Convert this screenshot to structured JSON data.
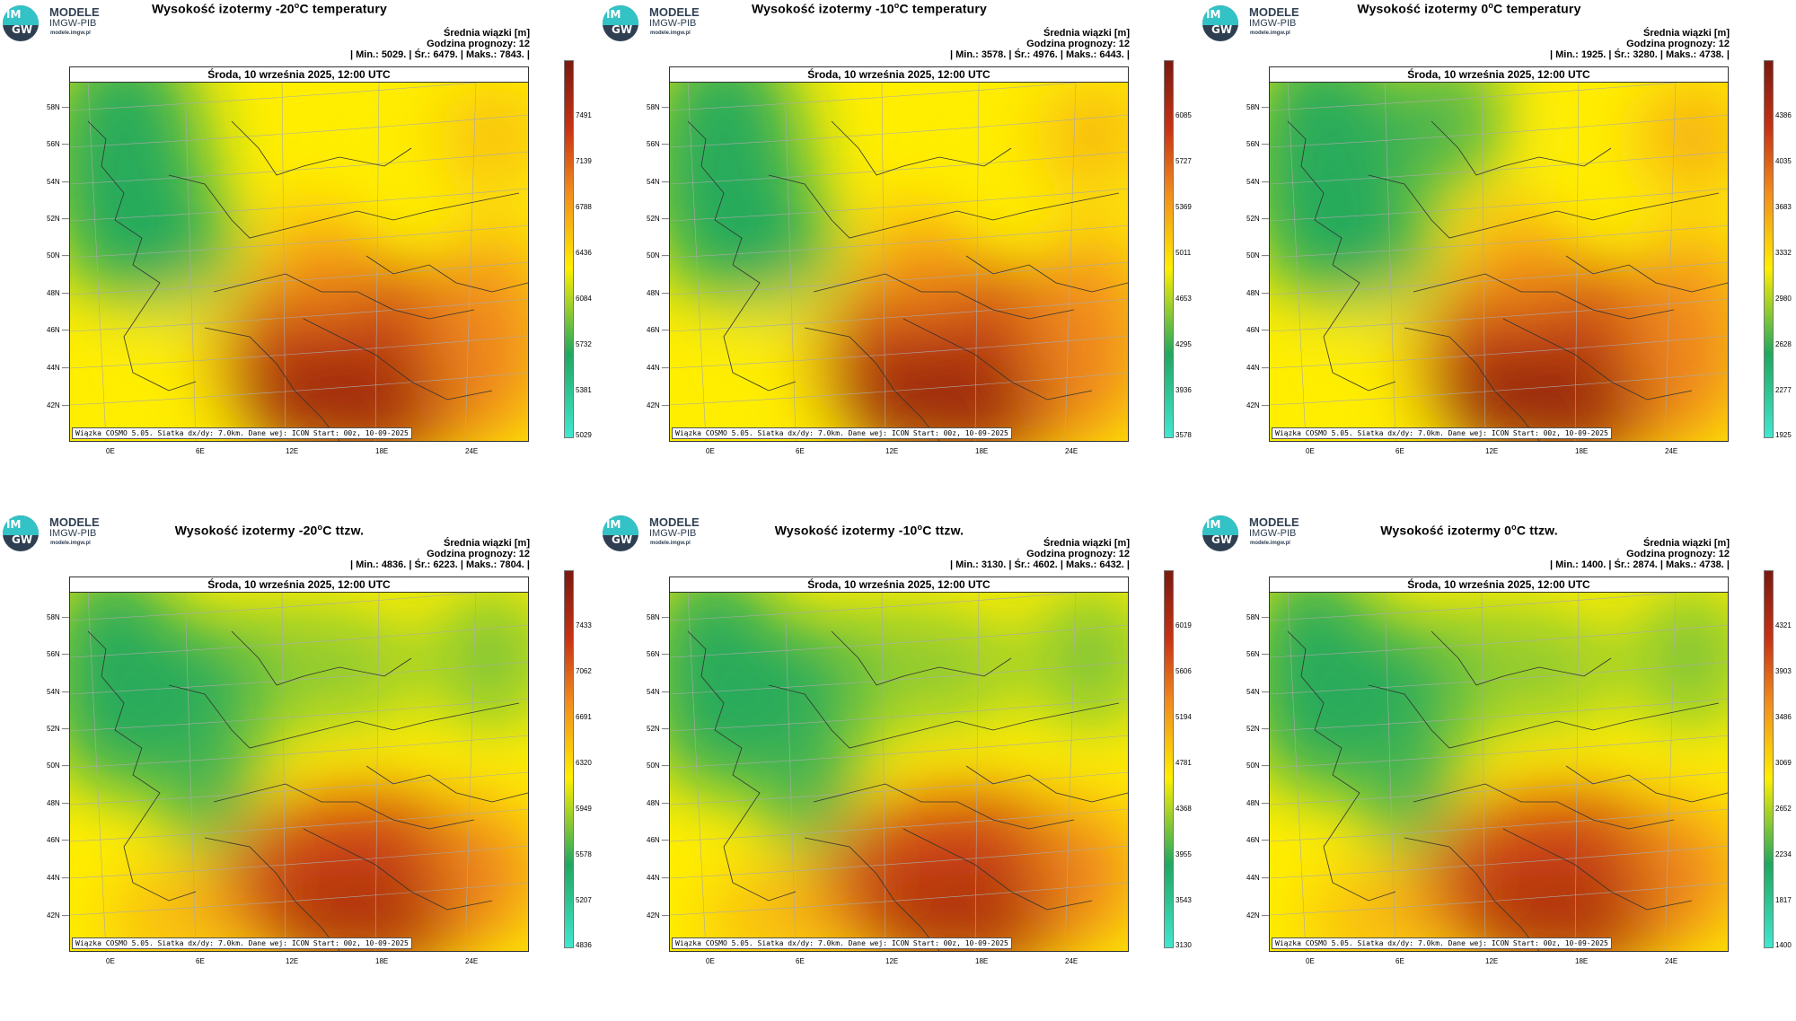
{
  "logo": {
    "circle_top": "IM",
    "circle_bottom": "GW",
    "line1": "MODELE",
    "line2": "IMGW-PIB",
    "line3": "modele.imgw.pl"
  },
  "date": "Środa, 10 września 2025, 12:00 UTC",
  "footer": "Wiązka COSMO 5.05. Siatka dx/dy: 7.0km. Dane wej: ICON Start: 00z, 10-09-2025",
  "info_line1": "Średnia wiązki [m]",
  "info_line2": "Godzina prognozy: 12",
  "lat_labels": [
    "58N",
    "56N",
    "54N",
    "52N",
    "50N",
    "48N",
    "46N",
    "44N",
    "42N"
  ],
  "lon_labels": [
    "0E",
    "6E",
    "12E",
    "18E",
    "24E"
  ],
  "colors": {
    "low": "#40e8d0",
    "green": "#1fa860",
    "yellow": "#ffee00",
    "orange": "#f28c1c",
    "red": "#c83214",
    "dark": "#7a1a10"
  },
  "panels": [
    {
      "title": "Wysokość izotermy -20°C temperatury",
      "stats": "| Min.:   5029. | Śr.:   6479. | Maks.:   7843. |",
      "scale": [
        "7491",
        "7139",
        "6788",
        "6436",
        "6084",
        "5732",
        "5381",
        "5029"
      ],
      "variant": "temperature",
      "warmth": 0.5
    },
    {
      "title": "Wysokość izotermy -10°C temperatury",
      "stats": "| Min.:   3578. | Śr.:   4976. | Maks.:   6443. |",
      "scale": [
        "6085",
        "5727",
        "5369",
        "5011",
        "4653",
        "4295",
        "3936",
        "3578"
      ],
      "variant": "temperature",
      "warmth": 0.6
    },
    {
      "title": "Wysokość izotermy 0°C temperatury",
      "stats": "| Min.:   1925. | Śr.:   3280. | Maks.:   4738. |",
      "scale": [
        "4386",
        "4035",
        "3683",
        "3332",
        "2980",
        "2628",
        "2277",
        "1925"
      ],
      "variant": "temperature",
      "warmth": 0.7
    },
    {
      "title": "Wysokość izotermy -20°C ttzw.",
      "stats": "| Min.:   4836. | Śr.:   6223. | Maks.:   7804. |",
      "scale": [
        "7433",
        "7062",
        "6691",
        "6320",
        "5949",
        "5578",
        "5207",
        "4836"
      ],
      "variant": "wetbulb",
      "warmth": 0.45
    },
    {
      "title": "Wysokość izotermy -10°C ttzw.",
      "stats": "| Min.:   3130. | Śr.:   4602. | Maks.:   6432. |",
      "scale": [
        "6019",
        "5606",
        "5194",
        "4781",
        "4368",
        "3955",
        "3543",
        "3130"
      ],
      "variant": "wetbulb",
      "warmth": 0.5
    },
    {
      "title": "Wysokość izotermy 0°C ttzw.",
      "stats": "| Min.:   1400. | Śr.:   2874. | Maks.:   4738. |",
      "scale": [
        "4321",
        "3903",
        "3486",
        "3069",
        "2652",
        "2234",
        "1817",
        "1400"
      ],
      "variant": "wetbulb",
      "warmth": 0.55
    }
  ]
}
